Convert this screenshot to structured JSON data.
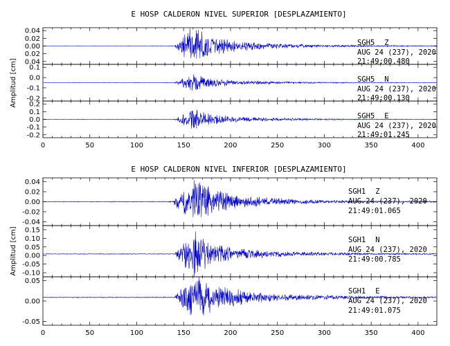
{
  "chart_data": [
    {
      "type": "line",
      "title": "E HOSP CALDERON NIVEL SUPERIOR [DESPLAZAMIENTO]",
      "ylabel": "Amplitud [cm]",
      "xlabel": "",
      "xlim": [
        0,
        420
      ],
      "x_ticks": [
        "0",
        "50",
        "100",
        "150",
        "200",
        "250",
        "300",
        "350",
        "400"
      ],
      "line_color": "#0000cc",
      "panels": [
        {
          "name": "SGH5 Z",
          "station": "SGH5",
          "component": "Z",
          "date": "AUG 24 (237), 2020",
          "time": "21:49:00.480",
          "ylim": [
            -0.045,
            0.045
          ],
          "y_ticks": [
            "0.04",
            "0.02",
            "0.00",
            "0.02",
            "0.04"
          ],
          "envelope": [
            [
              0,
              0.0003
            ],
            [
              140,
              0.0005
            ],
            [
              145,
              0.012
            ],
            [
              150,
              0.028
            ],
            [
              158,
              0.042
            ],
            [
              165,
              0.044
            ],
            [
              172,
              0.03
            ],
            [
              180,
              0.022
            ],
            [
              200,
              0.014
            ],
            [
              230,
              0.008
            ],
            [
              260,
              0.005
            ],
            [
              300,
              0.003
            ],
            [
              350,
              0.0015
            ],
            [
              420,
              0.001
            ]
          ]
        },
        {
          "name": "SGH5 N",
          "station": "SGH5",
          "component": "N",
          "date": "AUG 24 (237), 2020",
          "time": "21:49:00.130",
          "ylim": [
            -0.25,
            0.25
          ],
          "y_ticks": [
            "0.1",
            "0.0",
            "-0.1",
            "-0.2"
          ],
          "envelope": [
            [
              0,
              0.002
            ],
            [
              140,
              0.003
            ],
            [
              148,
              0.05
            ],
            [
              155,
              0.09
            ],
            [
              162,
              0.12
            ],
            [
              170,
              0.085
            ],
            [
              180,
              0.06
            ],
            [
              200,
              0.035
            ],
            [
              230,
              0.022
            ],
            [
              260,
              0.014
            ],
            [
              300,
              0.008
            ],
            [
              350,
              0.005
            ],
            [
              420,
              0.003
            ]
          ]
        },
        {
          "name": "SGH5 E",
          "station": "SGH5",
          "component": "E",
          "date": "AUG 24 (237), 2020",
          "time": "21:49:01.245",
          "ylim": [
            -0.25,
            0.25
          ],
          "y_ticks": [
            "0.2",
            "0.1",
            "0.0",
            "-0.1",
            "-0.2"
          ],
          "envelope": [
            [
              0,
              0.002
            ],
            [
              140,
              0.003
            ],
            [
              148,
              0.06
            ],
            [
              155,
              0.11
            ],
            [
              162,
              0.14
            ],
            [
              170,
              0.1
            ],
            [
              180,
              0.07
            ],
            [
              200,
              0.04
            ],
            [
              230,
              0.025
            ],
            [
              260,
              0.015
            ],
            [
              300,
              0.009
            ],
            [
              350,
              0.005
            ],
            [
              420,
              0.003
            ]
          ]
        }
      ]
    },
    {
      "type": "line",
      "title": "E HOSP CALDERON NIVEL INFERIOR [DESPLAZAMIENTO]",
      "ylabel": "Amplitud [cm]",
      "xlabel": "",
      "xlim": [
        0,
        420
      ],
      "x_ticks": [
        "0",
        "50",
        "100",
        "150",
        "200",
        "250",
        "300",
        "350",
        "400"
      ],
      "line_color": "#0000cc",
      "panels": [
        {
          "name": "SGH1 Z",
          "station": "SGH1",
          "component": "Z",
          "date": "AUG 24 (237), 2020",
          "time": "21:49:01.065",
          "ylim": [
            -0.048,
            0.048
          ],
          "y_ticks": [
            "0.04",
            "0.02",
            "0.00",
            "-0.02",
            "-0.04"
          ],
          "envelope": [
            [
              0,
              0.0004
            ],
            [
              138,
              0.0008
            ],
            [
              142,
              0.01
            ],
            [
              150,
              0.025
            ],
            [
              158,
              0.04
            ],
            [
              165,
              0.044
            ],
            [
              175,
              0.03
            ],
            [
              190,
              0.02
            ],
            [
              210,
              0.013
            ],
            [
              240,
              0.008
            ],
            [
              270,
              0.005
            ],
            [
              300,
              0.003
            ],
            [
              350,
              0.002
            ],
            [
              420,
              0.0012
            ]
          ]
        },
        {
          "name": "SGH1 N",
          "station": "SGH1",
          "component": "N",
          "date": "AUG 24 (237), 2020",
          "time": "21:49:00.785",
          "ylim": [
            -0.125,
            0.155
          ],
          "y_ticks": [
            "0.15",
            "0.10",
            "0.05",
            "0.00",
            "-0.05",
            "-0.10"
          ],
          "envelope": [
            [
              0,
              0.0015
            ],
            [
              140,
              0.002
            ],
            [
              148,
              0.05
            ],
            [
              155,
              0.1
            ],
            [
              160,
              0.13
            ],
            [
              168,
              0.09
            ],
            [
              180,
              0.055
            ],
            [
              200,
              0.035
            ],
            [
              230,
              0.022
            ],
            [
              260,
              0.014
            ],
            [
              300,
              0.008
            ],
            [
              350,
              0.005
            ],
            [
              420,
              0.003
            ]
          ]
        },
        {
          "name": "SGH1 E",
          "station": "SGH1",
          "component": "E",
          "date": "AUG 24 (237), 2020",
          "time": "21:49:01.075",
          "ylim": [
            -0.095,
            0.07
          ],
          "y_ticks": [
            "0.05",
            "0.00",
            "-0.05"
          ],
          "envelope": [
            [
              0,
              0.001
            ],
            [
              140,
              0.0015
            ],
            [
              145,
              0.02
            ],
            [
              152,
              0.045
            ],
            [
              160,
              0.07
            ],
            [
              168,
              0.065
            ],
            [
              180,
              0.045
            ],
            [
              200,
              0.03
            ],
            [
              230,
              0.018
            ],
            [
              260,
              0.011
            ],
            [
              300,
              0.007
            ],
            [
              350,
              0.004
            ],
            [
              420,
              0.0025
            ]
          ]
        }
      ]
    }
  ]
}
